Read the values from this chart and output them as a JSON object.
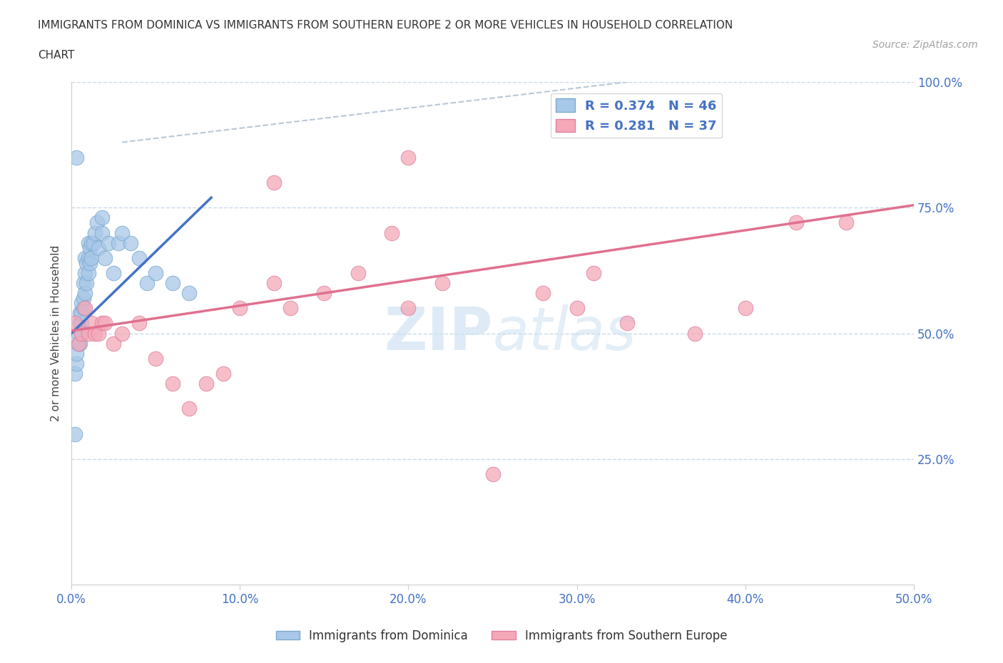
{
  "title_line1": "IMMIGRANTS FROM DOMINICA VS IMMIGRANTS FROM SOUTHERN EUROPE 2 OR MORE VEHICLES IN HOUSEHOLD CORRELATION",
  "title_line2": "CHART",
  "source": "Source: ZipAtlas.com",
  "ylabel": "2 or more Vehicles in Household",
  "xlim": [
    0.0,
    0.5
  ],
  "ylim": [
    0.0,
    1.0
  ],
  "xticks": [
    0.0,
    0.1,
    0.2,
    0.3,
    0.4,
    0.5
  ],
  "xticklabels": [
    "0.0%",
    "10.0%",
    "20.0%",
    "30.0%",
    "40.0%",
    "50.0%"
  ],
  "yticks": [
    0.0,
    0.25,
    0.5,
    0.75,
    1.0
  ],
  "yticklabels": [
    "",
    "25.0%",
    "50.0%",
    "75.0%",
    "100.0%"
  ],
  "blue_color": "#a8c8e8",
  "pink_color": "#f4a8b8",
  "blue_line_color": "#4472c4",
  "pink_line_color": "#e07090",
  "tick_label_color": "#4472c4",
  "watermark_color": "#c8dff0",
  "R_blue": 0.374,
  "N_blue": 46,
  "R_pink": 0.281,
  "N_pink": 37,
  "blue_x": [
    0.002,
    0.003,
    0.003,
    0.004,
    0.004,
    0.005,
    0.005,
    0.005,
    0.006,
    0.006,
    0.006,
    0.006,
    0.007,
    0.007,
    0.007,
    0.008,
    0.008,
    0.008,
    0.009,
    0.009,
    0.01,
    0.01,
    0.01,
    0.011,
    0.011,
    0.012,
    0.012,
    0.013,
    0.014,
    0.015,
    0.016,
    0.018,
    0.018,
    0.02,
    0.022,
    0.025,
    0.028,
    0.03,
    0.035,
    0.04,
    0.045,
    0.05,
    0.06,
    0.07,
    0.002,
    0.003
  ],
  "blue_y": [
    0.42,
    0.44,
    0.46,
    0.48,
    0.5,
    0.48,
    0.52,
    0.54,
    0.5,
    0.52,
    0.54,
    0.56,
    0.55,
    0.57,
    0.6,
    0.58,
    0.62,
    0.65,
    0.6,
    0.64,
    0.62,
    0.65,
    0.68,
    0.64,
    0.67,
    0.65,
    0.68,
    0.68,
    0.7,
    0.72,
    0.67,
    0.7,
    0.73,
    0.65,
    0.68,
    0.62,
    0.68,
    0.7,
    0.68,
    0.65,
    0.6,
    0.62,
    0.6,
    0.58,
    0.3,
    0.85
  ],
  "pink_x": [
    0.002,
    0.004,
    0.006,
    0.008,
    0.01,
    0.012,
    0.014,
    0.016,
    0.018,
    0.02,
    0.025,
    0.03,
    0.04,
    0.05,
    0.06,
    0.07,
    0.08,
    0.09,
    0.1,
    0.12,
    0.13,
    0.15,
    0.17,
    0.19,
    0.2,
    0.22,
    0.25,
    0.28,
    0.3,
    0.31,
    0.33,
    0.37,
    0.4,
    0.43,
    0.46,
    0.12,
    0.2
  ],
  "pink_y": [
    0.52,
    0.48,
    0.5,
    0.55,
    0.5,
    0.52,
    0.5,
    0.5,
    0.52,
    0.52,
    0.48,
    0.5,
    0.52,
    0.45,
    0.4,
    0.35,
    0.4,
    0.42,
    0.55,
    0.6,
    0.55,
    0.58,
    0.62,
    0.7,
    0.55,
    0.6,
    0.22,
    0.58,
    0.55,
    0.62,
    0.52,
    0.5,
    0.55,
    0.72,
    0.72,
    0.8,
    0.85
  ],
  "blue_line_x": [
    0.0,
    0.083
  ],
  "blue_line_y": [
    0.5,
    0.77
  ],
  "pink_line_x": [
    0.0,
    0.5
  ],
  "pink_line_y": [
    0.505,
    0.755
  ],
  "ref_line_x": [
    0.045,
    0.36
  ],
  "ref_line_y": [
    0.95,
    1.0
  ]
}
